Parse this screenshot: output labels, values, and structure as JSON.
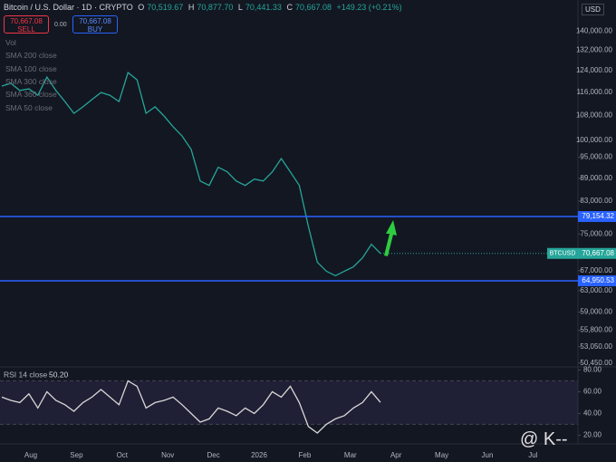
{
  "header": {
    "symbol": "Bitcoin / U.S. Dollar · 1D · CRYPTO",
    "open_label": "O",
    "open": "70,519.67",
    "high_label": "H",
    "high": "70,877.70",
    "low_label": "L",
    "low": "70,441.33",
    "close_label": "C",
    "close": "70,667.08",
    "change": "+149.23 (+0.21%)",
    "sell_price": "70,667.08",
    "sell": "SELL",
    "spread": "0.00",
    "buy_price": "70,667.08",
    "buy": "BUY",
    "currency": "USD",
    "indicators": [
      "Vol",
      "SMA 200 close",
      "SMA 100 close",
      "SMA 300 close",
      "SMA 360 close",
      "SMA 50 close"
    ],
    "watermark": "@ K--"
  },
  "chart_data": [
    {
      "type": "line",
      "log_scale": true,
      "color": "#26a69a",
      "values": [
        118200,
        119200,
        116600,
        117200,
        114900,
        121500,
        116600,
        112700,
        108700,
        110900,
        113400,
        115900,
        114900,
        112700,
        123200,
        120500,
        108700,
        110900,
        107800,
        104300,
        101400,
        97300,
        88300,
        87100,
        92100,
        90800,
        88300,
        87100,
        88800,
        88300,
        90800,
        94600,
        90800,
        87100,
        76800,
        68800,
        66900,
        66000,
        66900,
        67800,
        69700,
        72700,
        70667.08
      ],
      "ylim": [
        50000,
        154000
      ],
      "yticks": [
        {
          "value": 140000,
          "label": "140,000.00"
        },
        {
          "value": 132000,
          "label": "132,000.00"
        },
        {
          "value": 124000,
          "label": "124,000.00"
        },
        {
          "value": 116000,
          "label": "116,000.00"
        },
        {
          "value": 108000,
          "label": "108,000.00"
        },
        {
          "value": 100000,
          "label": "100,000.00"
        },
        {
          "value": 95000,
          "label": "95,000.00"
        },
        {
          "value": 89000,
          "label": "89,000.00"
        },
        {
          "value": 83000,
          "label": "83,000.00"
        },
        {
          "value": 75000,
          "label": "75,000.00"
        },
        {
          "value": 67000,
          "label": "67,000.00"
        },
        {
          "value": 63000,
          "label": "63,000.00"
        },
        {
          "value": 59000,
          "label": "59,000.00"
        },
        {
          "value": 55800,
          "label": "55,800.00"
        },
        {
          "value": 53050,
          "label": "53,050.00"
        },
        {
          "value": 50450,
          "label": "50,450.00"
        }
      ],
      "xticks": [
        "Aug",
        "Sep",
        "Oct",
        "Nov",
        "Dec",
        "2026",
        "Feb",
        "Mar",
        "Apr",
        "May",
        "Jun",
        "Jul"
      ],
      "levels": [
        {
          "value": 79154.32,
          "label": "79,154.32"
        },
        {
          "value": 64950.53,
          "label": "64,950.53"
        }
      ],
      "level_color": "#2962ff",
      "last_price": {
        "name": "BTCUSD",
        "value": 70667.08,
        "label": "70,667.08"
      }
    },
    {
      "type": "line",
      "title": "RSI 14 close",
      "current": "50.20",
      "color": "#d8d8d8",
      "values": [
        55,
        52,
        50,
        58,
        45,
        60,
        52,
        48,
        42,
        50,
        55,
        62,
        55,
        48,
        70,
        65,
        45,
        50,
        52,
        55,
        48,
        40,
        32,
        35,
        45,
        42,
        38,
        45,
        40,
        48,
        60,
        55,
        65,
        50,
        28,
        22,
        30,
        35,
        38,
        45,
        50,
        60,
        50.2
      ],
      "ylim": [
        12,
        82
      ],
      "band": [
        30,
        70
      ],
      "yticks": [
        {
          "value": 80,
          "label": "80.00"
        },
        {
          "value": 60,
          "label": "60.00"
        },
        {
          "value": 40,
          "label": "40.00"
        },
        {
          "value": 20,
          "label": "20.00"
        }
      ]
    }
  ]
}
